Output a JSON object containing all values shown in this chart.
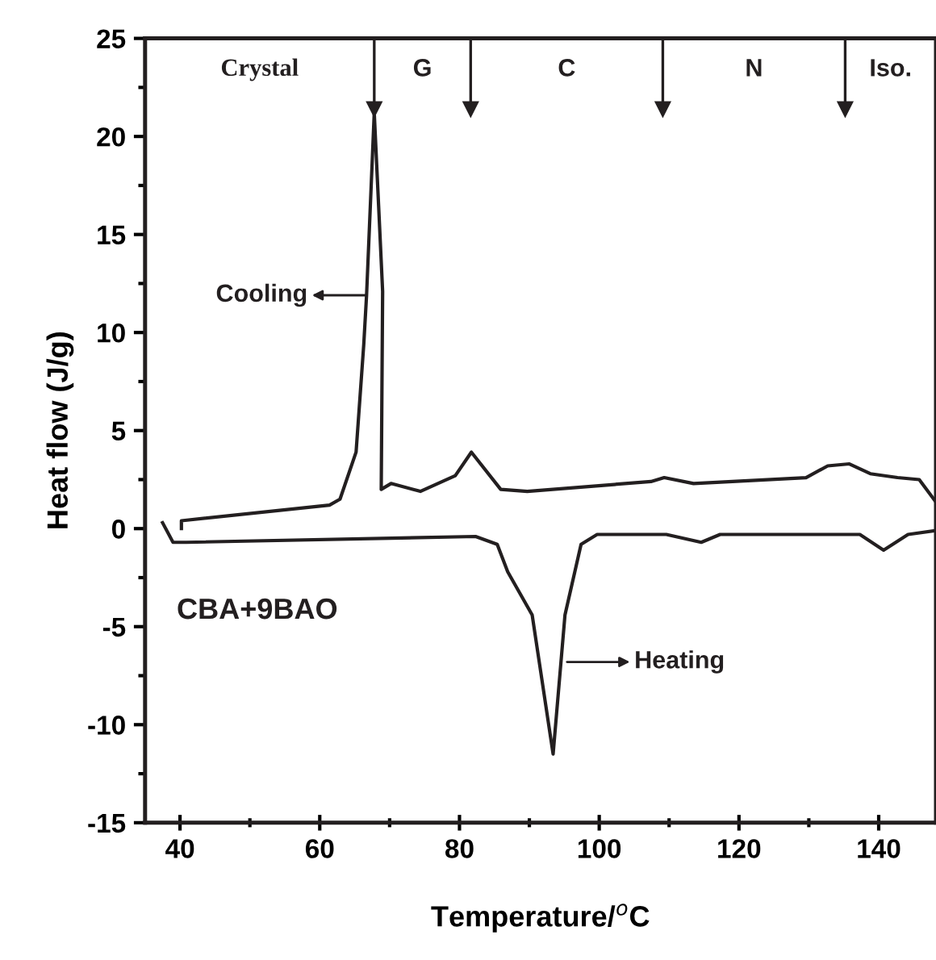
{
  "chart_data": {
    "type": "line",
    "xlabel": "Temperature/$^{o}$C",
    "ylabel": "Heat flow (J/g)",
    "xlim": [
      35,
      148.2
    ],
    "ylim": [
      -15,
      25
    ],
    "xticks": [
      40,
      {
        "value": 50,
        "label": null
      },
      60,
      {
        "value": 70,
        "label": null
      },
      80,
      {
        "value": 90,
        "label": null
      },
      100,
      {
        "value": 110,
        "label": null
      },
      120,
      {
        "value": 130,
        "label": null
      },
      140
    ],
    "yticks": [
      -15,
      {
        "value": -12.5,
        "label": null
      },
      -10,
      {
        "value": -7.5,
        "label": null
      },
      -5,
      {
        "value": -2.5,
        "label": null
      },
      0,
      {
        "value": 2.5,
        "label": null
      },
      5,
      {
        "value": 7.5,
        "label": null
      },
      10,
      {
        "value": 12.5,
        "label": null
      },
      15,
      {
        "value": 17.5,
        "label": null
      },
      20,
      {
        "value": 22.5,
        "label": null
      },
      25
    ],
    "grid": false,
    "legend": false,
    "marker": "none",
    "line_style": "solid",
    "series": [
      {
        "color": "#231f20",
        "x": [
          148.1,
          145.8,
          142.7,
          138.8,
          135.8,
          132.7,
          129.6,
          113.5,
          109.3,
          107.4,
          89.7,
          85.9,
          81.7,
          79.4,
          74.4,
          70.2,
          68.8,
          69.0,
          67.8,
          66.7,
          66.3,
          65.2,
          62.9,
          61.4,
          40.2,
          40.2
        ],
        "values": [
          1.4,
          2.5,
          2.6,
          2.8,
          3.3,
          3.2,
          2.6,
          2.3,
          2.6,
          2.4,
          1.9,
          2.0,
          3.9,
          2.7,
          1.9,
          2.3,
          2.0,
          12.1,
          21.2,
          11.9,
          9.4,
          3.9,
          1.5,
          1.2,
          0.4,
          0.0
        ]
      },
      {
        "color": "#231f20",
        "x": [
          37.5,
          39.0,
          40.9,
          82.3,
          85.4,
          86.9,
          90.4,
          93.4,
          95.1,
          97.4,
          99.7,
          109.6,
          114.6,
          117.3,
          137.3,
          140.7,
          144.2,
          148.1
        ],
        "values": [
          0.3,
          -0.7,
          -0.7,
          -0.4,
          -0.8,
          -2.2,
          -4.4,
          -11.5,
          -4.4,
          -0.8,
          -0.3,
          -0.3,
          -0.7,
          -0.3,
          -0.3,
          -1.1,
          -0.3,
          -0.1
        ]
      }
    ],
    "ref_lines": [
      {
        "axis": "x",
        "value": 67.8
      },
      {
        "axis": "x",
        "value": 81.6
      },
      {
        "axis": "x",
        "value": 109.1
      },
      {
        "axis": "x",
        "value": 135.2
      }
    ],
    "annotations": [
      "Crystal",
      "G",
      "C",
      "N",
      "Iso.",
      {
        "text": "Cooling",
        "x": 66.6,
        "y": 11.9
      },
      {
        "text": "Heating",
        "x": 95.4,
        "y": -6.8
      },
      "CBA+9BAO"
    ]
  }
}
